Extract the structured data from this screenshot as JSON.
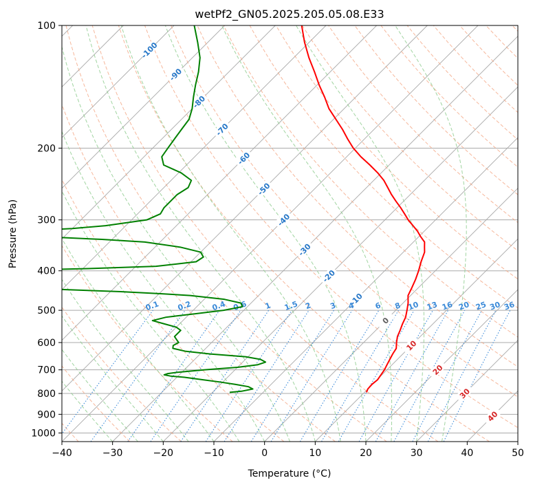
{
  "chart_data": {
    "type": "line",
    "title": "wetPf2_GN05.2025.205.05.08.E33",
    "xlabel": "Temperature (°C)",
    "ylabel": "Pressure (hPa)",
    "xlim": [
      -40,
      50
    ],
    "ylim": [
      1050,
      100
    ],
    "y_scale": "log",
    "x_ticks": [
      -40,
      -30,
      -20,
      -10,
      0,
      10,
      20,
      30,
      40,
      50
    ],
    "x_tick_labels": [
      "−40",
      "−30",
      "−20",
      "−10",
      "0",
      "10",
      "20",
      "30",
      "40",
      "50"
    ],
    "y_ticks": [
      1000,
      900,
      800,
      700,
      600,
      500,
      400,
      300,
      200,
      100
    ],
    "y_tick_labels": [
      "1000",
      "900",
      "800",
      "700",
      "600",
      "500",
      "400",
      "300",
      "200",
      "100"
    ],
    "grid": true,
    "colors": {
      "temperature": "#ff0000",
      "dewpoint": "#008000",
      "isotherm": "#a8a8a8",
      "dry_adiabat": "#f4a582",
      "moist_adiabat": "#8fcc8f",
      "mixing_ratio": "#3b8ad8",
      "label_blue": "#2878c8",
      "label_red": "#d62728",
      "label_gray": "#606060"
    },
    "series": [
      {
        "name": "temperature",
        "pressure": [
          795,
          780,
          760,
          740,
          720,
          700,
          680,
          660,
          640,
          620,
          600,
          580,
          560,
          540,
          520,
          500,
          480,
          460,
          440,
          420,
          400,
          380,
          360,
          350,
          340,
          330,
          320,
          310,
          300,
          290,
          280,
          270,
          260,
          250,
          240,
          230,
          220,
          210,
          200,
          190,
          180,
          170,
          160,
          150,
          140,
          130,
          120,
          110,
          100
        ],
        "values": [
          10.4,
          10.0,
          9.9,
          10.1,
          9.8,
          9.5,
          9.0,
          8.5,
          8.0,
          7.6,
          6.5,
          5.5,
          4.8,
          4.0,
          3.3,
          2.2,
          1.0,
          -0.5,
          -1.3,
          -2.2,
          -3.3,
          -4.6,
          -5.8,
          -6.8,
          -7.8,
          -9.6,
          -11.3,
          -13.3,
          -15.4,
          -17.3,
          -19.3,
          -21.5,
          -23.7,
          -25.8,
          -28.0,
          -30.7,
          -33.8,
          -37.2,
          -40.4,
          -43.3,
          -46.2,
          -49.5,
          -53.0,
          -56.1,
          -59.6,
          -63.1,
          -67.0,
          -70.9,
          -74.8
        ]
      },
      {
        "name": "dewpoint",
        "pressure": [
          795,
          790,
          780,
          770,
          760,
          750,
          740,
          730,
          725,
          720,
          715,
          710,
          700,
          690,
          680,
          670,
          660,
          650,
          640,
          630,
          620,
          610,
          600,
          590,
          580,
          570,
          560,
          550,
          540,
          530,
          520,
          510,
          500,
          490,
          480,
          470,
          460,
          455,
          450,
          440,
          420,
          400,
          395,
          390,
          380,
          370,
          360,
          350,
          340,
          335,
          330,
          325,
          320,
          315,
          310,
          300,
          290,
          280,
          270,
          260,
          250,
          240,
          230,
          220,
          210,
          200,
          190,
          180,
          170,
          160,
          150,
          140,
          130,
          120,
          110,
          100
        ],
        "values": [
          -16.6,
          -14.5,
          -12.7,
          -14.0,
          -17.0,
          -20.5,
          -24.5,
          -28.5,
          -31.5,
          -33.0,
          -32.5,
          -31.0,
          -26.0,
          -20.0,
          -16.5,
          -15.5,
          -17.0,
          -20.5,
          -28.0,
          -33.5,
          -36.5,
          -37.0,
          -36.5,
          -37.5,
          -38.5,
          -38.5,
          -38.5,
          -40.0,
          -43.0,
          -46.0,
          -44.0,
          -39.0,
          -34.0,
          -31.0,
          -32.0,
          -36.0,
          -43.5,
          -50.0,
          -58.0,
          -80.0,
          -100.0,
          -86.0,
          -69.0,
          -56.0,
          -49.0,
          -48.5,
          -50.0,
          -55.0,
          -63.0,
          -72.0,
          -84.0,
          -100.0,
          -91.0,
          -80.0,
          -74.0,
          -67.0,
          -65.5,
          -66.0,
          -66.0,
          -66.0,
          -65.2,
          -66.0,
          -69.5,
          -74.5,
          -76.5,
          -77.0,
          -77.5,
          -78.0,
          -78.5,
          -80.0,
          -82.0,
          -84.0,
          -86.0,
          -88.5,
          -92.0,
          -96.0
        ]
      }
    ],
    "isobars": [
      1000,
      900,
      800,
      700,
      600,
      500,
      400,
      300,
      200,
      100
    ],
    "isotherms": [
      -150,
      -140,
      -130,
      -120,
      -110,
      -100,
      -90,
      -80,
      -70,
      -60,
      -50,
      -40,
      -30,
      -20,
      -10,
      0,
      10,
      20,
      30,
      40,
      50
    ],
    "dry_adiabats_theta_c": [
      -40,
      -30,
      -20,
      -10,
      0,
      10,
      20,
      30,
      40,
      50,
      60,
      70,
      80,
      90,
      100,
      110,
      120,
      130,
      140,
      150,
      160,
      170,
      180,
      190,
      200
    ],
    "moist_adiabats_start_c": [
      -30,
      -25,
      -20,
      -15,
      -10,
      -5,
      0,
      5,
      10,
      15,
      20,
      25,
      30,
      35
    ],
    "mixing_ratio_lines": [
      0.1,
      0.2,
      0.4,
      0.6,
      1,
      1.5,
      2,
      3,
      4,
      6,
      8,
      10,
      13,
      16,
      20,
      25,
      30,
      36
    ],
    "mixing_ratio_labels": [
      "0.1",
      "0.2",
      "0.4",
      "0.6",
      "1",
      "1.5",
      "2",
      "3",
      "4",
      "6",
      "8",
      "10",
      "13",
      "16",
      "20",
      "25",
      "30",
      "36"
    ],
    "isotherm_labels_blue": [
      {
        "text": "-100",
        "t": -100,
        "p": 115
      },
      {
        "text": "-90",
        "t": -90,
        "p": 132
      },
      {
        "text": "-80",
        "t": -80,
        "p": 154
      },
      {
        "text": "-70",
        "t": -70,
        "p": 180
      },
      {
        "text": "-60",
        "t": -60,
        "p": 212
      },
      {
        "text": "-50",
        "t": -50,
        "p": 252
      },
      {
        "text": "-40",
        "t": -40,
        "p": 300
      },
      {
        "text": "-30",
        "t": -30,
        "p": 355
      },
      {
        "text": "-20",
        "t": -20,
        "p": 412
      },
      {
        "text": "-10",
        "t": -10,
        "p": 470
      }
    ],
    "isotherm_labels_other": [
      {
        "text": "0",
        "t": 0,
        "p": 530,
        "color": "label_gray"
      },
      {
        "text": "10",
        "t": 10,
        "p": 610,
        "color": "label_red"
      },
      {
        "text": "20",
        "t": 20,
        "p": 700,
        "color": "label_red"
      },
      {
        "text": "30",
        "t": 30,
        "p": 800,
        "color": "label_red"
      },
      {
        "text": "40",
        "t": 40,
        "p": 910,
        "color": "label_red"
      }
    ]
  }
}
